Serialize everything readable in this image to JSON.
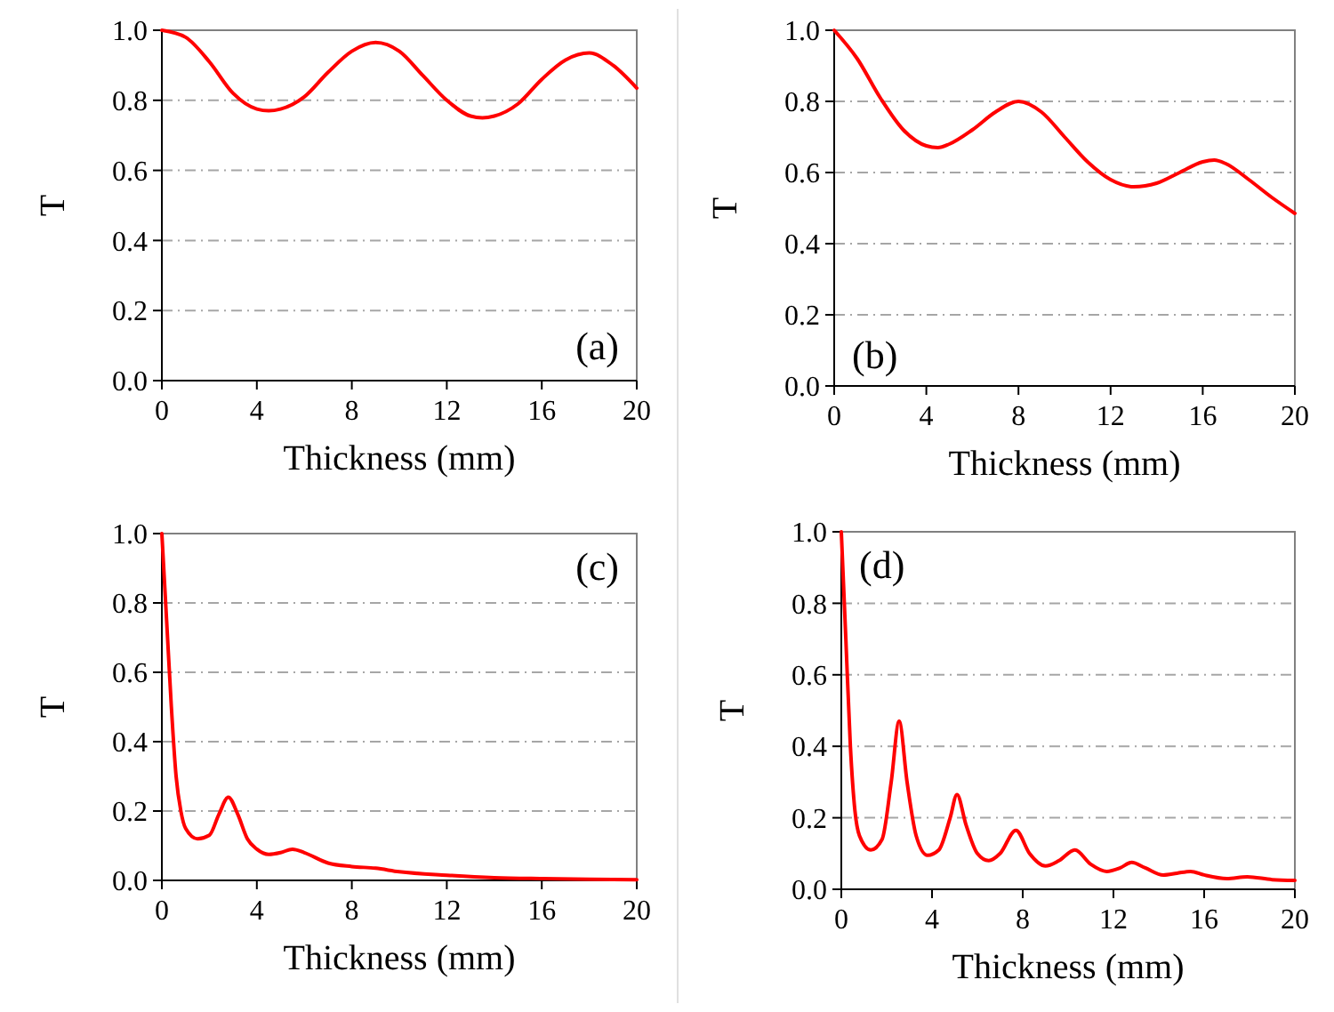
{
  "chart_data": [
    {
      "type": "line",
      "xlabel": "Thickness (mm)",
      "ylabel": "T",
      "annotations": [
        "(a)"
      ],
      "xlim": [
        0,
        20
      ],
      "xticks": [
        0,
        4,
        8,
        12,
        16,
        20
      ],
      "ylim": [
        0,
        1
      ],
      "yticks": [
        {
          "value": 0,
          "label": "0.0"
        },
        {
          "value": 0.2,
          "label": "0.2"
        },
        {
          "value": 0.4,
          "label": "0.4"
        },
        {
          "value": 0.6,
          "label": "0.6"
        },
        {
          "value": 0.8,
          "label": "0.8"
        },
        {
          "value": 1,
          "label": "1.0"
        }
      ],
      "grid": "y",
      "series": [
        {
          "color": "#ff0000",
          "x": [
            0,
            1,
            2,
            3,
            4,
            4.5,
            5,
            6,
            7,
            8,
            9,
            10,
            11,
            12,
            13,
            13.5,
            14,
            15,
            16,
            17,
            18,
            19,
            20
          ],
          "values": [
            1.0,
            0.98,
            0.91,
            0.82,
            0.775,
            0.77,
            0.775,
            0.81,
            0.88,
            0.94,
            0.965,
            0.94,
            0.87,
            0.8,
            0.755,
            0.75,
            0.755,
            0.79,
            0.86,
            0.915,
            0.935,
            0.9,
            0.835
          ]
        }
      ]
    },
    {
      "type": "line",
      "xlabel": "Thickness (mm)",
      "ylabel": "T",
      "annotations": [
        "(b)"
      ],
      "xlim": [
        0,
        20
      ],
      "xticks": [
        0,
        4,
        8,
        12,
        16,
        20
      ],
      "ylim": [
        0,
        1
      ],
      "yticks": [
        {
          "value": 0,
          "label": "0.0"
        },
        {
          "value": 0.2,
          "label": "0.2"
        },
        {
          "value": 0.4,
          "label": "0.4"
        },
        {
          "value": 0.6,
          "label": "0.6"
        },
        {
          "value": 0.8,
          "label": "0.8"
        },
        {
          "value": 1,
          "label": "1.0"
        }
      ],
      "grid": "y",
      "series": [
        {
          "color": "#ff0000",
          "x": [
            0,
            1,
            2,
            3,
            4,
            4.5,
            5,
            6,
            7,
            8,
            9,
            10,
            11,
            12,
            13,
            14,
            15,
            16,
            16.5,
            17,
            18,
            19,
            20
          ],
          "values": [
            1.0,
            0.92,
            0.81,
            0.72,
            0.675,
            0.67,
            0.68,
            0.72,
            0.77,
            0.8,
            0.77,
            0.7,
            0.63,
            0.58,
            0.56,
            0.57,
            0.6,
            0.63,
            0.635,
            0.625,
            0.58,
            0.53,
            0.485
          ]
        }
      ]
    },
    {
      "type": "line",
      "xlabel": "Thickness (mm)",
      "ylabel": "T",
      "annotations": [
        "(c)"
      ],
      "xlim": [
        0,
        20
      ],
      "xticks": [
        0,
        4,
        8,
        12,
        16,
        20
      ],
      "ylim": [
        0,
        1
      ],
      "yticks": [
        {
          "value": 0,
          "label": "0.0"
        },
        {
          "value": 0.2,
          "label": "0.2"
        },
        {
          "value": 0.4,
          "label": "0.4"
        },
        {
          "value": 0.6,
          "label": "0.6"
        },
        {
          "value": 0.8,
          "label": "0.8"
        },
        {
          "value": 1,
          "label": "1.0"
        }
      ],
      "grid": "y",
      "series": [
        {
          "color": "#ff0000",
          "x": [
            0,
            0.2,
            0.4,
            0.6,
            0.8,
            1,
            1.5,
            2,
            2.4,
            2.8,
            3.2,
            3.6,
            4,
            4.5,
            5,
            5.5,
            6,
            7,
            8,
            9,
            10,
            12,
            14,
            16,
            18,
            20
          ],
          "values": [
            1.0,
            0.75,
            0.5,
            0.3,
            0.2,
            0.15,
            0.12,
            0.13,
            0.19,
            0.24,
            0.19,
            0.12,
            0.09,
            0.075,
            0.08,
            0.09,
            0.08,
            0.05,
            0.04,
            0.035,
            0.025,
            0.015,
            0.008,
            0.005,
            0.003,
            0.002
          ]
        }
      ]
    },
    {
      "type": "line",
      "xlabel": "Thickness (mm)",
      "ylabel": "T",
      "annotations": [
        "(d)"
      ],
      "xlim": [
        0,
        20
      ],
      "xticks": [
        0,
        4,
        8,
        12,
        16,
        20
      ],
      "ylim": [
        0,
        1
      ],
      "yticks": [
        {
          "value": 0,
          "label": "0.0"
        },
        {
          "value": 0.2,
          "label": "0.2"
        },
        {
          "value": 0.4,
          "label": "0.4"
        },
        {
          "value": 0.6,
          "label": "0.6"
        },
        {
          "value": 0.8,
          "label": "0.8"
        },
        {
          "value": 1,
          "label": "1.0"
        }
      ],
      "grid": "y",
      "series": [
        {
          "color": "#ff0000",
          "x": [
            0,
            0.2,
            0.4,
            0.6,
            0.8,
            1.3,
            1.8,
            2.2,
            2.55,
            2.9,
            3.3,
            3.8,
            4.3,
            4.8,
            5.1,
            5.5,
            6,
            6.5,
            7,
            7.7,
            8.3,
            9,
            9.6,
            10.3,
            11,
            11.7,
            12.3,
            12.8,
            13.4,
            14.2,
            14.8,
            15.4,
            16,
            17,
            17.9,
            19,
            20
          ],
          "values": [
            1.0,
            0.7,
            0.4,
            0.22,
            0.15,
            0.11,
            0.14,
            0.3,
            0.47,
            0.3,
            0.15,
            0.095,
            0.11,
            0.2,
            0.265,
            0.18,
            0.1,
            0.08,
            0.1,
            0.165,
            0.1,
            0.065,
            0.08,
            0.11,
            0.07,
            0.05,
            0.06,
            0.075,
            0.06,
            0.04,
            0.045,
            0.05,
            0.04,
            0.03,
            0.035,
            0.027,
            0.025
          ]
        }
      ]
    }
  ]
}
